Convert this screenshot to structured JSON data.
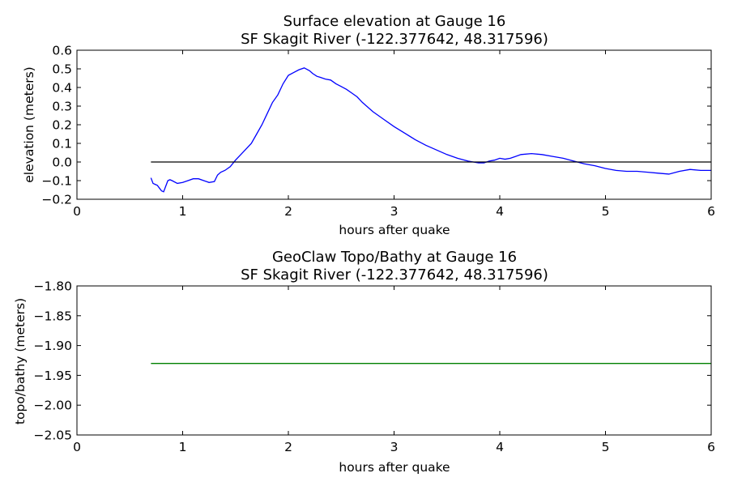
{
  "chart_data": [
    {
      "type": "line",
      "title": "Surface elevation at Gauge 16",
      "subtitle": "SF Skagit River  (-122.377642, 48.317596)",
      "xlabel": "hours after quake",
      "ylabel": "elevation (meters)",
      "xlim": [
        0,
        6
      ],
      "ylim": [
        -0.2,
        0.6
      ],
      "xticks": [
        "0",
        "1",
        "2",
        "3",
        "4",
        "5",
        "6"
      ],
      "yticks": [
        "−0.2",
        "−0.1",
        "0.0",
        "0.1",
        "0.2",
        "0.3",
        "0.4",
        "0.5",
        "0.6"
      ],
      "grid": false,
      "series": [
        {
          "color": "#0000ff",
          "x": [
            0.7,
            0.72,
            0.74,
            0.76,
            0.78,
            0.8,
            0.82,
            0.84,
            0.86,
            0.88,
            0.9,
            0.95,
            1.0,
            1.05,
            1.1,
            1.15,
            1.2,
            1.25,
            1.3,
            1.33,
            1.36,
            1.4,
            1.45,
            1.5,
            1.55,
            1.6,
            1.65,
            1.7,
            1.75,
            1.8,
            1.85,
            1.9,
            1.95,
            2.0,
            2.05,
            2.1,
            2.15,
            2.2,
            2.23,
            2.27,
            2.3,
            2.35,
            2.4,
            2.45,
            2.5,
            2.55,
            2.6,
            2.65,
            2.7,
            2.8,
            2.9,
            3.0,
            3.1,
            3.2,
            3.3,
            3.4,
            3.5,
            3.6,
            3.7,
            3.8,
            3.85,
            3.9,
            3.95,
            4.0,
            4.05,
            4.1,
            4.2,
            4.3,
            4.4,
            4.5,
            4.6,
            4.7,
            4.8,
            4.9,
            5.0,
            5.1,
            5.2,
            5.3,
            5.4,
            5.5,
            5.6,
            5.7,
            5.8,
            5.9,
            6.0
          ],
          "y": [
            -0.085,
            -0.115,
            -0.12,
            -0.125,
            -0.14,
            -0.155,
            -0.16,
            -0.13,
            -0.1,
            -0.095,
            -0.1,
            -0.115,
            -0.11,
            -0.1,
            -0.09,
            -0.09,
            -0.1,
            -0.11,
            -0.105,
            -0.07,
            -0.055,
            -0.045,
            -0.025,
            0.01,
            0.04,
            0.07,
            0.1,
            0.15,
            0.2,
            0.26,
            0.32,
            0.36,
            0.42,
            0.465,
            0.48,
            0.495,
            0.505,
            0.49,
            0.475,
            0.46,
            0.455,
            0.445,
            0.44,
            0.42,
            0.405,
            0.39,
            0.37,
            0.35,
            0.32,
            0.27,
            0.23,
            0.19,
            0.155,
            0.12,
            0.09,
            0.065,
            0.04,
            0.02,
            0.005,
            -0.005,
            -0.005,
            0.005,
            0.01,
            0.02,
            0.015,
            0.02,
            0.04,
            0.045,
            0.04,
            0.03,
            0.02,
            0.005,
            -0.01,
            -0.02,
            -0.035,
            -0.045,
            -0.05,
            -0.05,
            -0.055,
            -0.06,
            -0.065,
            -0.05,
            -0.04,
            -0.045,
            -0.045
          ]
        },
        {
          "color": "#000000",
          "x": [
            0.7,
            6.0
          ],
          "y": [
            0.0,
            0.0
          ]
        }
      ]
    },
    {
      "type": "line",
      "title": "GeoClaw Topo/Bathy at Gauge 16",
      "subtitle": "SF Skagit River  (-122.377642, 48.317596)",
      "xlabel": "hours after quake",
      "ylabel": "topo/bathy (meters)",
      "xlim": [
        0,
        6
      ],
      "ylim": [
        -2.05,
        -1.8
      ],
      "xticks": [
        "0",
        "1",
        "2",
        "3",
        "4",
        "5",
        "6"
      ],
      "yticks": [
        "−2.05",
        "−2.00",
        "−1.95",
        "−1.90",
        "−1.85",
        "−1.80"
      ],
      "grid": false,
      "series": [
        {
          "color": "#008000",
          "x": [
            0.7,
            6.0
          ],
          "y": [
            -1.93,
            -1.93
          ]
        }
      ]
    }
  ]
}
